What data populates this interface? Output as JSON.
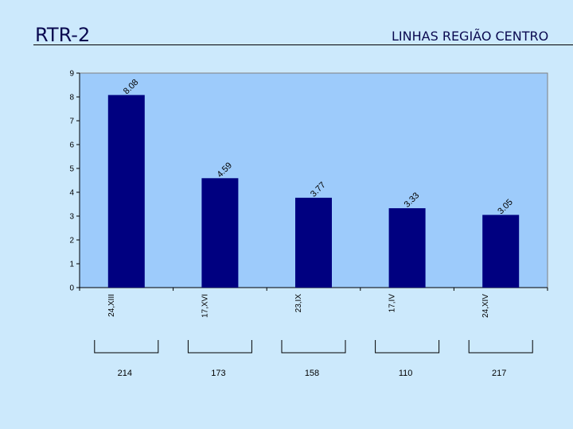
{
  "header": {
    "title": "RTR-2",
    "subtitle": "LINHAS REGIÃO CENTRO"
  },
  "colors": {
    "background": "#cce9fc",
    "plot_area": "#9dcbfb",
    "bar_fill": "#000080"
  },
  "chart_data": {
    "type": "bar",
    "categories": [
      "24,XIII",
      "17,XVI",
      "23,IX",
      "17,IV",
      "24,XIV"
    ],
    "values": [
      8.08,
      4.59,
      3.77,
      3.33,
      3.05
    ],
    "value_labels": [
      "8.08",
      "4.59",
      "3.77",
      "3.33",
      "3.05"
    ],
    "ylim": [
      0,
      9
    ],
    "yticks": [
      "0",
      "1",
      "2",
      "3",
      "4",
      "5",
      "6",
      "7",
      "8",
      "9"
    ],
    "grid": false,
    "legend": "none",
    "bottom_numbers": [
      "214",
      "173",
      "158",
      "110",
      "217"
    ]
  }
}
